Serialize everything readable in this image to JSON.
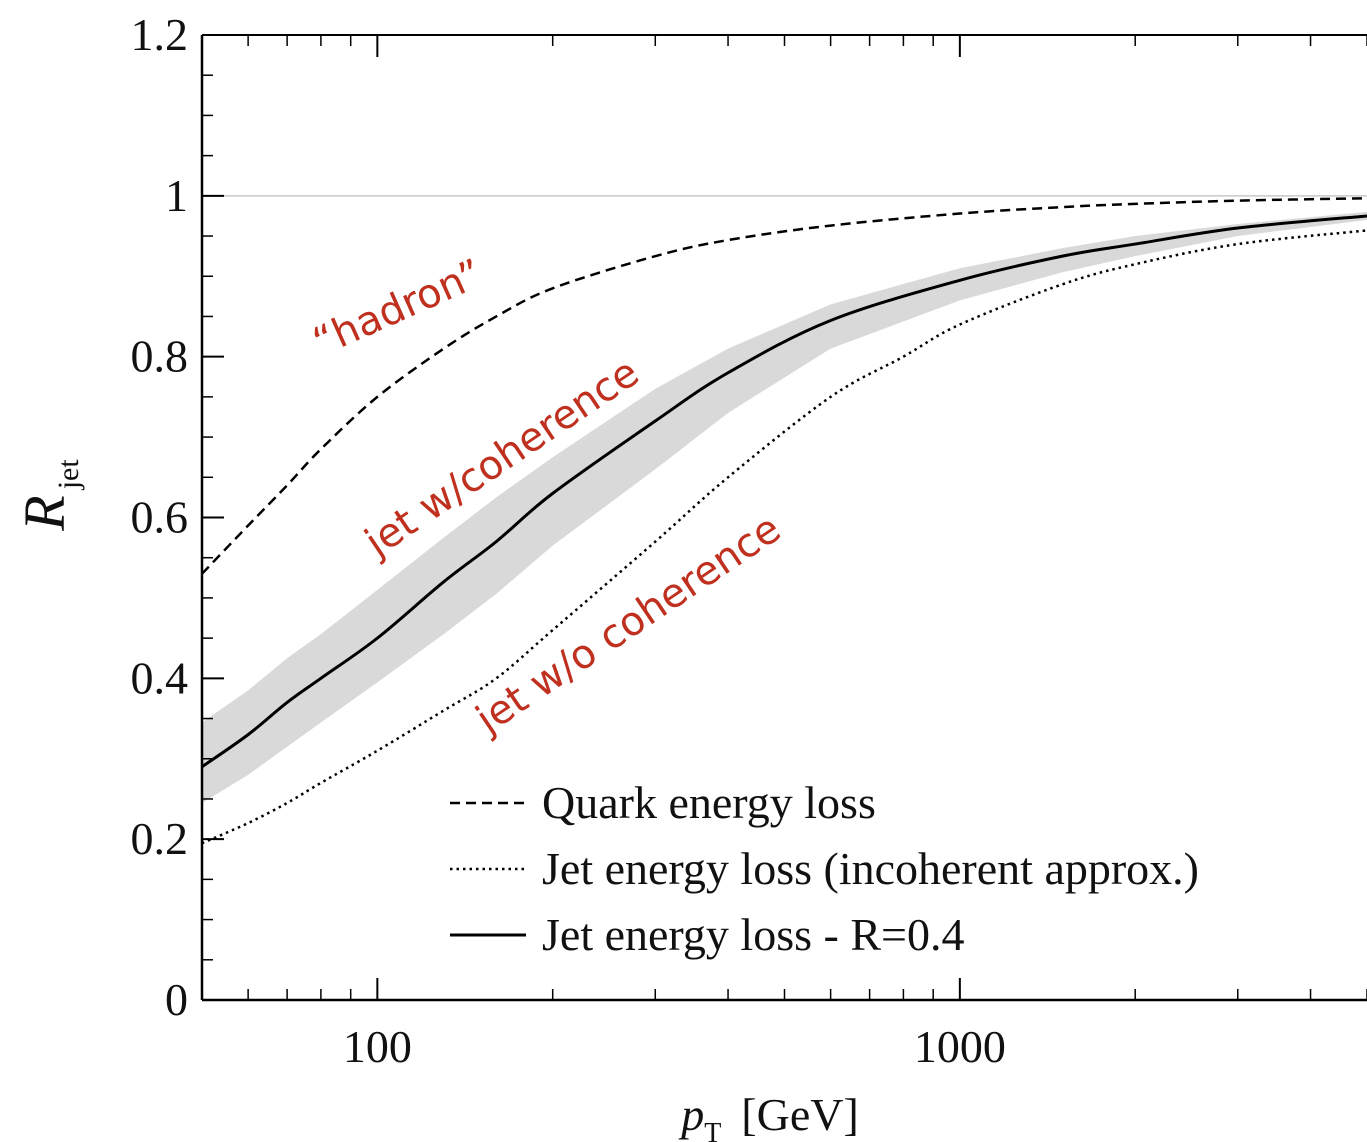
{
  "chart_data": {
    "type": "line",
    "title": "",
    "xlabel": {
      "var": "p",
      "sub": "T",
      "unit": "[GeV]"
    },
    "ylabel": {
      "var": "R",
      "sub": "jet"
    },
    "x_scale": "log",
    "xlim": [
      50,
      5000
    ],
    "ylim": [
      0,
      1.2
    ],
    "x_ticks": [
      100,
      1000
    ],
    "x_tick_labels": [
      "100",
      "1000"
    ],
    "y_ticks": [
      0,
      0.2,
      0.4,
      0.6,
      0.8,
      1,
      1.2
    ],
    "y_tick_labels": [
      "0",
      "0.2",
      "0.4",
      "0.6",
      "0.8",
      "1",
      "1.2"
    ],
    "reference_line": {
      "y": 1,
      "color": "#c8c8c8"
    },
    "grid": false,
    "legend_position": "bottom-center",
    "series": [
      {
        "name": "Quark energy loss",
        "style": "dashed",
        "color": "#000000",
        "points": [
          [
            50,
            0.53
          ],
          [
            60,
            0.59
          ],
          [
            70,
            0.64
          ],
          [
            80,
            0.685
          ],
          [
            100,
            0.75
          ],
          [
            130,
            0.81
          ],
          [
            160,
            0.85
          ],
          [
            200,
            0.885
          ],
          [
            300,
            0.925
          ],
          [
            400,
            0.945
          ],
          [
            600,
            0.963
          ],
          [
            1000,
            0.978
          ],
          [
            1500,
            0.986
          ],
          [
            2000,
            0.99
          ],
          [
            3000,
            0.994
          ],
          [
            5000,
            0.997
          ]
        ]
      },
      {
        "name": "Jet energy loss (incoherent approx.)",
        "style": "dotted",
        "color": "#000000",
        "points": [
          [
            50,
            0.195
          ],
          [
            60,
            0.22
          ],
          [
            70,
            0.245
          ],
          [
            80,
            0.27
          ],
          [
            100,
            0.31
          ],
          [
            130,
            0.36
          ],
          [
            160,
            0.4
          ],
          [
            200,
            0.46
          ],
          [
            300,
            0.57
          ],
          [
            400,
            0.65
          ],
          [
            600,
            0.75
          ],
          [
            800,
            0.8
          ],
          [
            1000,
            0.84
          ],
          [
            1500,
            0.89
          ],
          [
            2000,
            0.915
          ],
          [
            3000,
            0.94
          ],
          [
            5000,
            0.957
          ]
        ]
      },
      {
        "name": "Jet energy loss - R=0.4",
        "style": "solid",
        "color": "#000000",
        "band_color": "#d9d9d9",
        "points": [
          [
            50,
            0.29
          ],
          [
            60,
            0.33
          ],
          [
            70,
            0.37
          ],
          [
            80,
            0.4
          ],
          [
            100,
            0.45
          ],
          [
            130,
            0.52
          ],
          [
            160,
            0.57
          ],
          [
            200,
            0.63
          ],
          [
            300,
            0.72
          ],
          [
            400,
            0.78
          ],
          [
            600,
            0.845
          ],
          [
            1000,
            0.895
          ],
          [
            1500,
            0.925
          ],
          [
            2000,
            0.94
          ],
          [
            3000,
            0.96
          ],
          [
            5000,
            0.975
          ]
        ],
        "band_upper": [
          [
            50,
            0.345
          ],
          [
            60,
            0.385
          ],
          [
            70,
            0.425
          ],
          [
            80,
            0.455
          ],
          [
            100,
            0.51
          ],
          [
            130,
            0.575
          ],
          [
            160,
            0.625
          ],
          [
            200,
            0.675
          ],
          [
            300,
            0.76
          ],
          [
            400,
            0.81
          ],
          [
            600,
            0.865
          ],
          [
            1000,
            0.91
          ],
          [
            1500,
            0.935
          ],
          [
            2000,
            0.95
          ],
          [
            3000,
            0.965
          ],
          [
            5000,
            0.98
          ]
        ],
        "band_lower": [
          [
            50,
            0.245
          ],
          [
            60,
            0.28
          ],
          [
            70,
            0.315
          ],
          [
            80,
            0.345
          ],
          [
            100,
            0.395
          ],
          [
            130,
            0.455
          ],
          [
            160,
            0.505
          ],
          [
            200,
            0.565
          ],
          [
            300,
            0.66
          ],
          [
            400,
            0.73
          ],
          [
            600,
            0.81
          ],
          [
            1000,
            0.87
          ],
          [
            1500,
            0.905
          ],
          [
            2000,
            0.925
          ],
          [
            3000,
            0.95
          ],
          [
            5000,
            0.97
          ]
        ]
      }
    ],
    "annotations": [
      {
        "text": "“hadron”",
        "x": 80,
        "y": 0.8,
        "angle": -24,
        "color": "#c0301f"
      },
      {
        "text": "jet w/coherence",
        "x": 100,
        "y": 0.55,
        "angle": -34,
        "color": "#c0301f"
      },
      {
        "text": "jet w/o coherence",
        "x": 155,
        "y": 0.33,
        "angle": -34,
        "color": "#c0301f"
      }
    ]
  }
}
